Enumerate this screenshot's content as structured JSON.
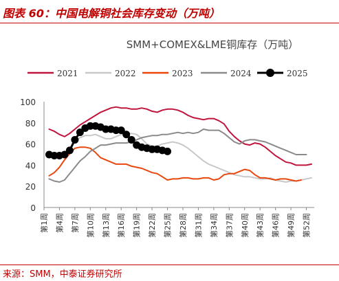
{
  "figure": {
    "title": "图表 60：中国电解铜社会库存变动（万吨）",
    "source": "来源：SMM，中泰证券研究所"
  },
  "chart_data": {
    "type": "line",
    "title": "SMM+COMEX&LME铜库存（万吨）",
    "xlabel": "",
    "ylabel": "",
    "ylim": [
      0,
      100
    ],
    "yticks": [
      0,
      20,
      40,
      60,
      80,
      100
    ],
    "x": [
      1,
      2,
      3,
      4,
      5,
      6,
      7,
      8,
      9,
      10,
      11,
      12,
      13,
      14,
      15,
      16,
      17,
      18,
      19,
      20,
      21,
      22,
      23,
      24,
      25,
      26,
      27,
      28,
      29,
      30,
      31,
      32,
      33,
      34,
      35,
      36,
      37,
      38,
      39,
      40,
      41,
      42,
      43,
      44,
      45,
      46,
      47,
      48,
      49,
      50,
      51,
      52,
      53
    ],
    "xticks": [
      1,
      4,
      7,
      10,
      13,
      16,
      19,
      22,
      25,
      28,
      31,
      34,
      37,
      40,
      43,
      46,
      49,
      52
    ],
    "xtick_labels": [
      "第1周",
      "第4周",
      "第7周",
      "第10周",
      "第13周",
      "第16周",
      "第19周",
      "第22周",
      "第25周",
      "第28周",
      "第31周",
      "第34周",
      "第37周",
      "第40周",
      "第43周",
      "第46周",
      "第49周",
      "第52周"
    ],
    "legend_position": "top",
    "grid": false,
    "series": [
      {
        "name": "2021",
        "color": "#c0143c",
        "width": 2,
        "markers": false,
        "values": [
          null,
          74,
          72,
          69,
          67,
          70,
          74,
          78,
          81,
          84,
          87,
          90,
          92,
          94,
          95,
          94,
          94,
          93,
          93,
          94,
          93,
          91,
          90,
          92,
          93,
          93,
          92,
          90,
          87,
          85,
          84,
          83,
          84,
          84,
          82,
          79,
          72,
          67,
          63,
          60,
          59,
          61,
          60,
          57,
          53,
          49,
          46,
          43,
          42,
          40,
          40,
          40,
          41
        ]
      },
      {
        "name": "2022",
        "color": "#c8c8c8",
        "width": 2,
        "markers": false,
        "values": [
          null,
          49,
          50,
          50,
          52,
          56,
          62,
          66,
          68,
          68,
          69,
          67,
          65,
          65,
          67,
          69,
          70,
          70,
          69,
          65,
          60,
          58,
          58,
          60,
          61,
          62,
          61,
          59,
          56,
          52,
          48,
          44,
          41,
          39,
          37,
          35,
          33,
          31,
          30,
          29,
          29,
          28,
          27,
          27,
          28,
          26,
          25,
          24,
          25,
          25,
          26,
          27,
          28
        ]
      },
      {
        "name": "2023",
        "color": "#e8470e",
        "width": 2,
        "markers": false,
        "values": [
          null,
          30,
          33,
          38,
          45,
          51,
          56,
          57,
          57,
          56,
          52,
          47,
          45,
          43,
          41,
          41,
          41,
          39,
          38,
          37,
          35,
          33,
          32,
          29,
          26,
          27,
          27,
          28,
          28,
          27,
          27,
          28,
          28,
          26,
          27,
          31,
          32,
          32,
          34,
          36,
          35,
          31,
          28,
          28,
          27,
          26,
          27,
          27,
          26,
          25,
          26,
          null,
          null
        ]
      },
      {
        "name": "2024",
        "color": "#8a8a8a",
        "width": 2,
        "markers": false,
        "values": [
          null,
          27,
          25,
          24,
          26,
          32,
          38,
          44,
          48,
          53,
          56,
          59,
          59,
          60,
          61,
          61,
          61,
          62,
          64,
          66,
          67,
          68,
          68,
          69,
          69,
          70,
          71,
          70,
          71,
          70,
          71,
          74,
          73,
          73,
          73,
          70,
          66,
          62,
          60,
          63,
          64,
          64,
          63,
          62,
          60,
          58,
          56,
          54,
          52,
          50,
          50,
          50,
          null
        ]
      },
      {
        "name": "2025",
        "color": "#000000",
        "width": 3,
        "markers": true,
        "values": [
          null,
          50,
          49,
          49,
          50,
          54,
          64,
          71,
          75,
          77,
          77,
          76,
          74,
          74,
          73,
          73,
          69,
          64,
          59,
          57,
          56,
          55,
          55,
          54,
          53,
          null,
          null,
          null,
          null,
          null,
          null,
          null,
          null,
          null,
          null,
          null,
          null,
          null,
          null,
          null,
          null,
          null,
          null,
          null,
          null,
          null,
          null,
          null,
          null,
          null,
          null,
          null,
          null
        ]
      }
    ]
  }
}
